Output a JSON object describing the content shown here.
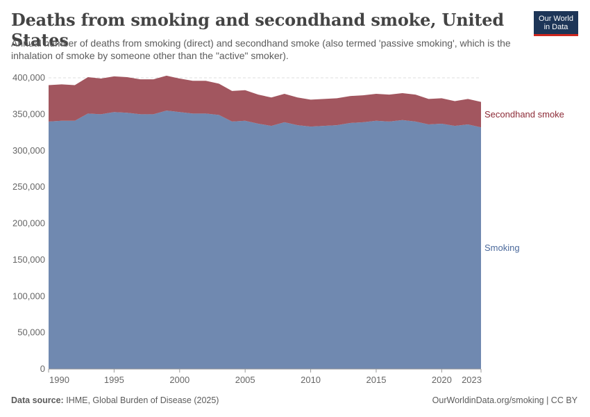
{
  "header": {
    "title": "Deaths from smoking and secondhand smoke, United States",
    "subtitle": "Annual number of deaths from smoking (direct) and secondhand smoke (also termed 'passive smoking', which is the inhalation of smoke by someone other than the \"active\" smoker).",
    "logo_line1": "Our World",
    "logo_line2": "in Data"
  },
  "footer": {
    "source_label": "Data source:",
    "source_text": "IHME, Global Burden of Disease (2025)",
    "credit": "OurWorldinData.org/smoking | CC BY"
  },
  "colors": {
    "smoking": "#7089b0",
    "secondhand": "#a2565f",
    "smoking_label": "#4c6a9c",
    "secondhand_label": "#8c2a36",
    "grid": "#dddddd"
  },
  "chart_data": {
    "type": "area",
    "stacked": true,
    "x": [
      1990,
      1991,
      1992,
      1993,
      1994,
      1995,
      1996,
      1997,
      1998,
      1999,
      2000,
      2001,
      2002,
      2003,
      2004,
      2005,
      2006,
      2007,
      2008,
      2009,
      2010,
      2011,
      2012,
      2013,
      2014,
      2015,
      2016,
      2017,
      2018,
      2019,
      2020,
      2021,
      2022,
      2023
    ],
    "series": [
      {
        "name": "Smoking",
        "values": [
          340000,
          341000,
          341000,
          351000,
          350000,
          353000,
          352000,
          350000,
          350000,
          355000,
          353000,
          351000,
          351000,
          349000,
          340000,
          341000,
          337000,
          334000,
          339000,
          335000,
          333000,
          334000,
          335000,
          338000,
          339000,
          341000,
          340000,
          342000,
          340000,
          336000,
          337000,
          334000,
          336000,
          332000
        ]
      },
      {
        "name": "Secondhand smoke",
        "values": [
          50000,
          50000,
          49000,
          50000,
          49000,
          49000,
          49000,
          48000,
          48000,
          48000,
          46000,
          45000,
          45000,
          43000,
          42000,
          42000,
          40000,
          39000,
          39000,
          38000,
          37000,
          37000,
          37000,
          37000,
          37000,
          37000,
          37000,
          37000,
          37000,
          35000,
          35000,
          34000,
          35000,
          35000
        ]
      }
    ],
    "xticks": [
      "1990",
      "1995",
      "2000",
      "2005",
      "2010",
      "2015",
      "2020",
      "2023"
    ],
    "yticks": [
      "0",
      "50,000",
      "100,000",
      "150,000",
      "200,000",
      "250,000",
      "300,000",
      "350,000",
      "400,000"
    ],
    "ylim": [
      0,
      400000
    ],
    "xlim": [
      1990,
      2023
    ],
    "grid": "horizontal dashed",
    "legend": "inline labels at right"
  }
}
